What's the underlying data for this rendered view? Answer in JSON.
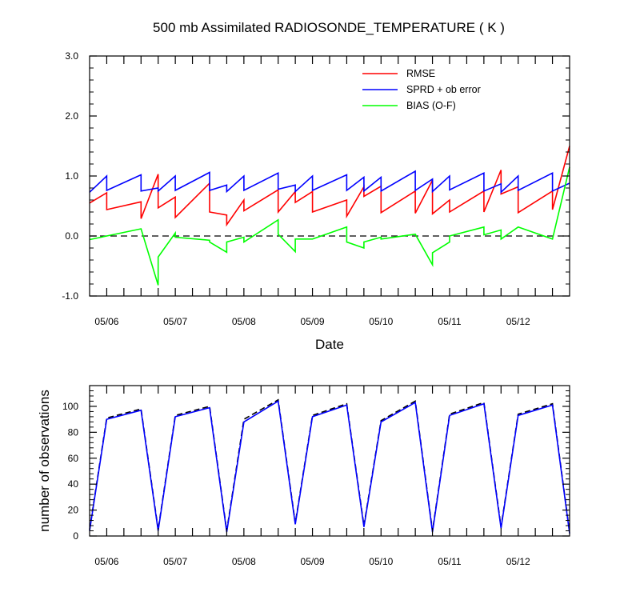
{
  "chart_data": [
    {
      "type": "line",
      "title": "500 mb Assimilated RADIOSONDE_TEMPERATURE ( K )",
      "xlabel": "Date",
      "ylabel": "",
      "xlim": [
        0,
        28
      ],
      "ylim": [
        -1.0,
        3.0
      ],
      "yticks": [
        -1.0,
        0.0,
        1.0,
        2.0,
        3.0
      ],
      "ytick_labels": [
        "-1.0",
        "0.0",
        "1.0",
        "2.0",
        "3.0"
      ],
      "x_tick_labels": [
        {
          "x": 1,
          "label": "05/06"
        },
        {
          "x": 5,
          "label": "05/07"
        },
        {
          "x": 9,
          "label": "05/08"
        },
        {
          "x": 13,
          "label": "05/09"
        },
        {
          "x": 17,
          "label": "05/10"
        },
        {
          "x": 21,
          "label": "05/11"
        },
        {
          "x": 25,
          "label": "05/12"
        }
      ],
      "reference_line": {
        "y": 0.0,
        "style": "dashed"
      },
      "legend": {
        "position": "top-right",
        "entries": [
          "RMSE",
          "SPRD + ob error",
          "BIAS (O-F)"
        ]
      },
      "series": [
        {
          "name": "RMSE",
          "color": "#ff0000",
          "points": [
            [
              0,
              0.55
            ],
            [
              1,
              0.72
            ],
            [
              1,
              0.44
            ],
            [
              3,
              0.57
            ],
            [
              3,
              0.29
            ],
            [
              4,
              1.03
            ],
            [
              4,
              0.47
            ],
            [
              5,
              0.65
            ],
            [
              5,
              0.31
            ],
            [
              7,
              0.88
            ],
            [
              7,
              0.4
            ],
            [
              8,
              0.35
            ],
            [
              8,
              0.19
            ],
            [
              9,
              0.6
            ],
            [
              9,
              0.42
            ],
            [
              11,
              0.77
            ],
            [
              11,
              0.4
            ],
            [
              12,
              0.74
            ],
            [
              12,
              0.56
            ],
            [
              13,
              0.74
            ],
            [
              13,
              0.4
            ],
            [
              15,
              0.6
            ],
            [
              15,
              0.33
            ],
            [
              16,
              0.82
            ],
            [
              16,
              0.66
            ],
            [
              17,
              0.83
            ],
            [
              17,
              0.39
            ],
            [
              19,
              0.75
            ],
            [
              19,
              0.38
            ],
            [
              20,
              0.93
            ],
            [
              20,
              0.37
            ],
            [
              21,
              0.6
            ],
            [
              21,
              0.4
            ],
            [
              23,
              0.75
            ],
            [
              23,
              0.4
            ],
            [
              24,
              1.1
            ],
            [
              24,
              0.7
            ],
            [
              25,
              0.82
            ],
            [
              25,
              0.39
            ],
            [
              27,
              0.75
            ],
            [
              27,
              0.44
            ],
            [
              28,
              1.5
            ]
          ]
        },
        {
          "name": "SPRD + ob error",
          "color": "#0000ff",
          "points": [
            [
              0,
              0.73
            ],
            [
              1,
              1.0
            ],
            [
              1,
              0.76
            ],
            [
              3,
              1.02
            ],
            [
              3,
              0.75
            ],
            [
              4,
              0.8
            ],
            [
              4,
              0.75
            ],
            [
              5,
              1.0
            ],
            [
              5,
              0.76
            ],
            [
              7,
              1.06
            ],
            [
              7,
              0.76
            ],
            [
              8,
              0.85
            ],
            [
              8,
              0.74
            ],
            [
              9,
              1.0
            ],
            [
              9,
              0.76
            ],
            [
              11,
              1.05
            ],
            [
              11,
              0.78
            ],
            [
              12,
              0.85
            ],
            [
              12,
              0.74
            ],
            [
              13,
              1.0
            ],
            [
              13,
              0.76
            ],
            [
              15,
              1.02
            ],
            [
              15,
              0.76
            ],
            [
              16,
              0.98
            ],
            [
              16,
              0.75
            ],
            [
              17,
              0.98
            ],
            [
              17,
              0.75
            ],
            [
              19,
              1.08
            ],
            [
              19,
              0.76
            ],
            [
              20,
              0.95
            ],
            [
              20,
              0.74
            ],
            [
              21,
              1.0
            ],
            [
              21,
              0.77
            ],
            [
              23,
              1.05
            ],
            [
              23,
              0.75
            ],
            [
              24,
              0.87
            ],
            [
              24,
              0.73
            ],
            [
              25,
              1.0
            ],
            [
              25,
              0.76
            ],
            [
              27,
              1.05
            ],
            [
              27,
              0.75
            ],
            [
              28,
              0.88
            ]
          ]
        },
        {
          "name": "BIAS (O-F)",
          "color": "#00ff00",
          "points": [
            [
              0,
              -0.06
            ],
            [
              3,
              0.12
            ],
            [
              4,
              -0.82
            ],
            [
              4,
              -0.35
            ],
            [
              5,
              0.05
            ],
            [
              5,
              -0.02
            ],
            [
              7,
              -0.07
            ],
            [
              7,
              -0.1
            ],
            [
              8,
              -0.27
            ],
            [
              8,
              -0.1
            ],
            [
              9,
              -0.02
            ],
            [
              9,
              -0.1
            ],
            [
              11,
              0.27
            ],
            [
              11,
              0.03
            ],
            [
              12,
              -0.26
            ],
            [
              12,
              -0.05
            ],
            [
              13,
              -0.05
            ],
            [
              15,
              0.15
            ],
            [
              15,
              -0.1
            ],
            [
              16,
              -0.2
            ],
            [
              16,
              -0.1
            ],
            [
              17,
              -0.02
            ],
            [
              17,
              -0.05
            ],
            [
              19,
              0.03
            ],
            [
              20,
              -0.48
            ],
            [
              20,
              -0.28
            ],
            [
              21,
              -0.1
            ],
            [
              21,
              0.0
            ],
            [
              23,
              0.15
            ],
            [
              23,
              0.02
            ],
            [
              24,
              0.1
            ],
            [
              24,
              -0.05
            ],
            [
              25,
              0.15
            ],
            [
              27,
              -0.05
            ],
            [
              28,
              1.15
            ]
          ]
        }
      ]
    },
    {
      "type": "line",
      "title": "",
      "xlabel": "",
      "ylabel": "number of observations",
      "xlim": [
        0,
        28
      ],
      "ylim": [
        0,
        116
      ],
      "yticks": [
        0,
        20,
        40,
        60,
        80,
        100
      ],
      "ytick_labels": [
        "0",
        "20",
        "40",
        "60",
        "80",
        "100"
      ],
      "x_tick_labels": [
        {
          "x": 1,
          "label": "05/06"
        },
        {
          "x": 5,
          "label": "05/07"
        },
        {
          "x": 9,
          "label": "05/08"
        },
        {
          "x": 13,
          "label": "05/09"
        },
        {
          "x": 17,
          "label": "05/10"
        },
        {
          "x": 21,
          "label": "05/11"
        },
        {
          "x": 25,
          "label": "05/12"
        }
      ],
      "series": [
        {
          "color": "#000000",
          "style": "dashed",
          "points": [
            [
              0,
              5
            ],
            [
              1,
              91
            ],
            [
              3,
              98
            ],
            [
              4,
              5
            ],
            [
              5,
              93
            ],
            [
              7,
              100
            ],
            [
              8,
              4
            ],
            [
              9,
              90
            ],
            [
              11,
              105
            ],
            [
              12,
              10
            ],
            [
              13,
              93
            ],
            [
              15,
              102
            ],
            [
              16,
              8
            ],
            [
              17,
              89
            ],
            [
              19,
              104
            ],
            [
              20,
              4
            ],
            [
              21,
              94
            ],
            [
              23,
              103
            ],
            [
              24,
              7
            ],
            [
              25,
              94
            ],
            [
              27,
              102
            ],
            [
              28,
              3
            ]
          ]
        },
        {
          "color": "#0000ff",
          "style": "solid",
          "points": [
            [
              0,
              4
            ],
            [
              1,
              90
            ],
            [
              3,
              97
            ],
            [
              4,
              4
            ],
            [
              5,
              92
            ],
            [
              7,
              99
            ],
            [
              8,
              3
            ],
            [
              9,
              88
            ],
            [
              11,
              104
            ],
            [
              12,
              9
            ],
            [
              13,
              92
            ],
            [
              15,
              101
            ],
            [
              16,
              7
            ],
            [
              17,
              88
            ],
            [
              19,
              103
            ],
            [
              20,
              3
            ],
            [
              21,
              93
            ],
            [
              23,
              102
            ],
            [
              24,
              6
            ],
            [
              25,
              93
            ],
            [
              27,
              101
            ],
            [
              28,
              2
            ]
          ]
        }
      ]
    }
  ]
}
